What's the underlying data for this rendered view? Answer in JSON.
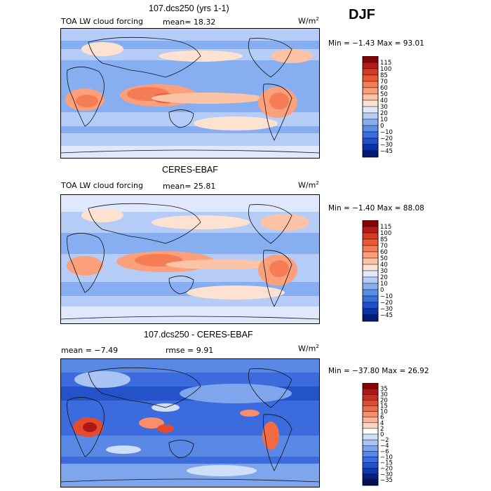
{
  "season": "DJF",
  "chart_data": [
    {
      "type": "heatmap",
      "title": "107.dcs250 (yrs 1-1)",
      "variable": "TOA LW cloud forcing",
      "stats_left": "mean=  18.32",
      "units_base": "W/m",
      "units_exp": "2",
      "minmax": "Min =  −1.43 Max =  93.01",
      "colorbar": {
        "levels": [
          "115",
          "100",
          "85",
          "70",
          "60",
          "50",
          "40",
          "30",
          "20",
          "10",
          "0",
          "−10",
          "−20",
          "−30",
          "−45"
        ],
        "colors": [
          "#8b0000",
          "#b31b1b",
          "#d73a23",
          "#ea5a32",
          "#f57d55",
          "#fba07a",
          "#fdc3a6",
          "#fde2d2",
          "#dfe9fb",
          "#b5cdf6",
          "#86aef0",
          "#5c8ee8",
          "#3a6fdf",
          "#2050cc",
          "#0b30a8",
          "#041a78"
        ]
      }
    },
    {
      "type": "heatmap",
      "title": "CERES-EBAF",
      "variable": "TOA LW cloud forcing",
      "stats_left": "mean=  25.81",
      "units_base": "W/m",
      "units_exp": "2",
      "minmax": "Min =  −1.40 Max =  88.08",
      "colorbar": {
        "levels": [
          "115",
          "100",
          "85",
          "70",
          "60",
          "50",
          "40",
          "30",
          "20",
          "10",
          "0",
          "−10",
          "−20",
          "−30",
          "−45"
        ],
        "colors": [
          "#8b0000",
          "#b31b1b",
          "#d73a23",
          "#ea5a32",
          "#f57d55",
          "#fba07a",
          "#fdc3a6",
          "#fde2d2",
          "#dfe9fb",
          "#b5cdf6",
          "#86aef0",
          "#5c8ee8",
          "#3a6fdf",
          "#2050cc",
          "#0b30a8",
          "#041a78"
        ]
      }
    },
    {
      "type": "heatmap",
      "title": "107.dcs250 - CERES-EBAF",
      "stats_left": "mean =  −7.49",
      "stats_mid": "rmse =   9.91",
      "units_base": "W/m",
      "units_exp": "2",
      "minmax": "Min = −37.80 Max =  26.92",
      "colorbar": {
        "levels": [
          "35",
          "30",
          "20",
          "15",
          "10",
          "6",
          "4",
          "2",
          "0",
          "−2",
          "−4",
          "−6",
          "−10",
          "−15",
          "−20",
          "−30",
          "−35"
        ],
        "colors": [
          "#8b0000",
          "#b01515",
          "#cf2a1e",
          "#e44a2e",
          "#f26b45",
          "#f98e68",
          "#fcb394",
          "#fdd6c3",
          "#ffffff",
          "#cfdff7",
          "#a9c4f2",
          "#7fa6ec",
          "#5a88e5",
          "#3b6bdc",
          "#2452c9",
          "#1238a8",
          "#061d7d",
          "#020f55"
        ]
      }
    }
  ]
}
